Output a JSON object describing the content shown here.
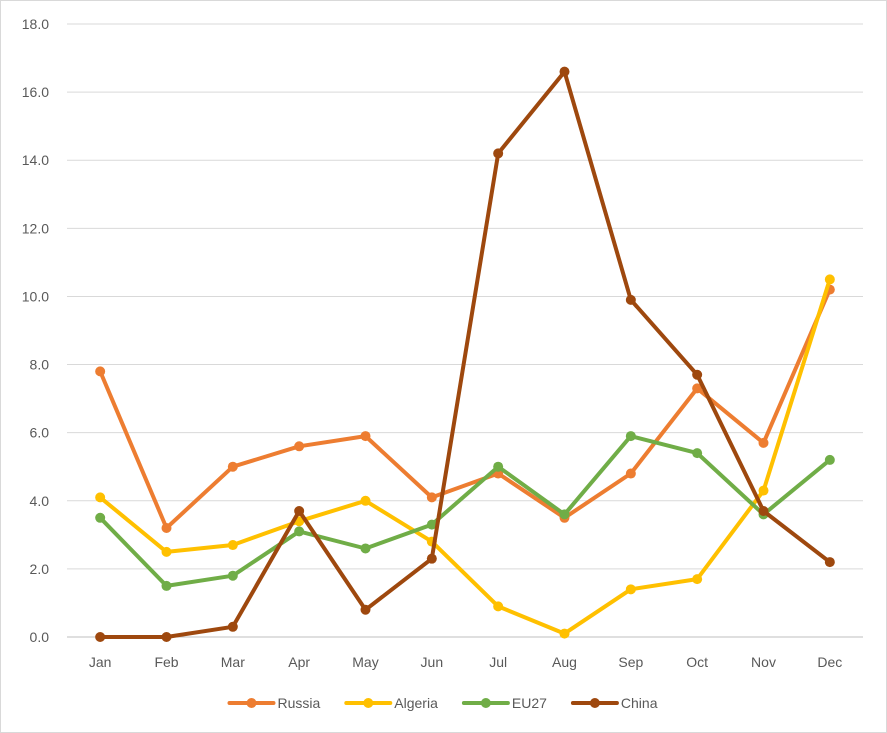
{
  "chart_data": {
    "type": "line",
    "title": "",
    "xlabel": "",
    "ylabel": "",
    "categories": [
      "Jan",
      "Feb",
      "Mar",
      "Apr",
      "May",
      "Jun",
      "Jul",
      "Aug",
      "Sep",
      "Oct",
      "Nov",
      "Dec"
    ],
    "ylim": [
      0,
      18
    ],
    "ytick_step": 2,
    "y_tick_labels": [
      "0.0",
      "2.0",
      "4.0",
      "6.0",
      "8.0",
      "10.0",
      "12.0",
      "14.0",
      "16.0",
      "18.0"
    ],
    "grid": "horizontal",
    "legend_position": "bottom",
    "series": [
      {
        "name": "Russia",
        "color": "#ED7D31",
        "values": [
          7.8,
          3.2,
          5.0,
          5.6,
          5.9,
          4.1,
          4.8,
          3.5,
          4.8,
          7.3,
          5.7,
          10.2
        ]
      },
      {
        "name": "Algeria",
        "color": "#FFC000",
        "values": [
          4.1,
          2.5,
          2.7,
          3.4,
          4.0,
          2.8,
          0.9,
          0.1,
          1.4,
          1.7,
          4.3,
          10.5
        ]
      },
      {
        "name": "EU27",
        "color": "#70AD47",
        "values": [
          3.5,
          1.5,
          1.8,
          3.1,
          2.6,
          3.3,
          5.0,
          3.6,
          5.9,
          5.4,
          3.6,
          5.2
        ]
      },
      {
        "name": "China",
        "color": "#9E480E",
        "values": [
          0.0,
          0.0,
          0.3,
          3.7,
          0.8,
          2.3,
          14.2,
          16.6,
          9.9,
          7.7,
          3.7,
          2.2
        ]
      }
    ]
  }
}
